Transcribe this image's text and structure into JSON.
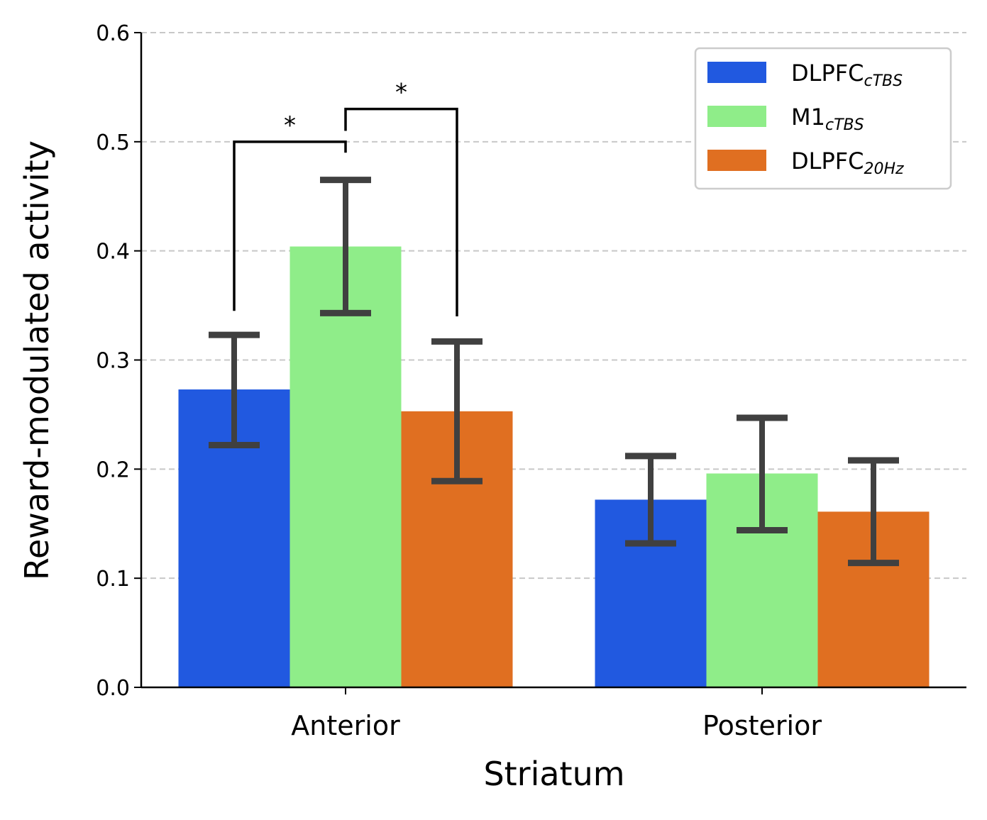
{
  "chart_data": {
    "type": "bar",
    "xlabel": "Striatum",
    "ylabel": "Reward-modulated activity",
    "ylim": [
      0,
      0.6
    ],
    "yticks": [
      "0.0",
      "0.1",
      "0.2",
      "0.3",
      "0.4",
      "0.5",
      "0.6"
    ],
    "grid": "horizontal dashed",
    "legend_position": "top-right",
    "categories": [
      "Anterior",
      "Posterior"
    ],
    "series": [
      {
        "name": "DLPFC",
        "name_subscript": "cTBS",
        "color": "#2159e0",
        "values": [
          0.273,
          0.172
        ],
        "error_low": [
          0.222,
          0.132
        ],
        "error_high": [
          0.323,
          0.212
        ]
      },
      {
        "name": "M1",
        "name_subscript": "cTBS",
        "color": "#8fed89",
        "values": [
          0.404,
          0.196
        ],
        "error_low": [
          0.343,
          0.144
        ],
        "error_high": [
          0.465,
          0.247
        ]
      },
      {
        "name": "DLPFC",
        "name_subscript": "20Hz",
        "color": "#e06f21",
        "values": [
          0.253,
          0.161
        ],
        "error_low": [
          0.189,
          0.114
        ],
        "error_high": [
          0.317,
          0.208
        ]
      }
    ],
    "annotations": [
      {
        "text": "*",
        "category": "Anterior",
        "from_series": 0,
        "to_series": 1,
        "bracket_y": 0.5,
        "left_foot_y": 0.345,
        "right_foot_y": 0.49
      },
      {
        "text": "*",
        "category": "Anterior",
        "from_series": 1,
        "to_series": 2,
        "bracket_y": 0.53,
        "left_foot_y": 0.51,
        "right_foot_y": 0.34
      }
    ],
    "colors": {
      "error_bar": "#404040",
      "grid": "#c8c8c8",
      "axis": "#000000",
      "legend_border": "#cccccc"
    }
  }
}
